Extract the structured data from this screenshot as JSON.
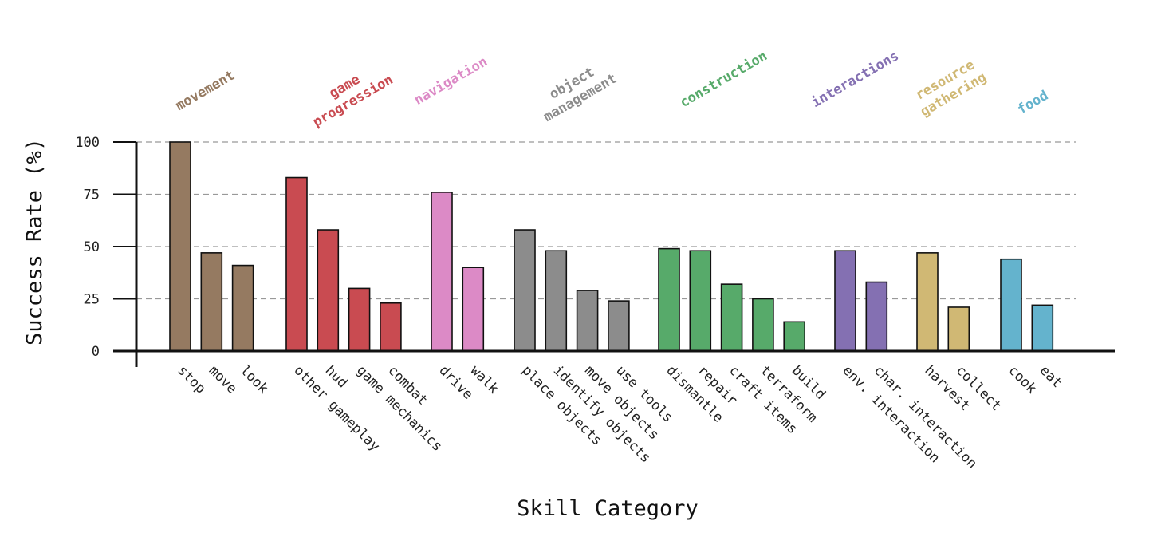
{
  "chart_data": {
    "type": "bar",
    "xlabel": "Skill Category",
    "ylabel": "Success Rate (%)",
    "ylim": [
      0,
      100
    ],
    "yticks": [
      0,
      25,
      50,
      75,
      100
    ],
    "grid": "horizontal dashed",
    "groups": [
      {
        "name": "movement",
        "color": "#957a61",
        "categories": [
          "stop",
          "move",
          "look"
        ],
        "values": [
          100,
          47,
          41
        ]
      },
      {
        "name": "game progression",
        "color": "#c94b51",
        "categories": [
          "other gameplay",
          "hud",
          "game mechanics",
          "combat"
        ],
        "values": [
          83,
          58,
          30,
          23
        ]
      },
      {
        "name": "navigation",
        "color": "#dc8ac6",
        "categories": [
          "drive",
          "walk"
        ],
        "values": [
          76,
          40
        ]
      },
      {
        "name": "object management",
        "color": "#8c8c8c",
        "categories": [
          "place objects",
          "identify objects",
          "move objects",
          "use tools"
        ],
        "values": [
          58,
          48,
          29,
          24
        ]
      },
      {
        "name": "construction",
        "color": "#57aa6a",
        "categories": [
          "dismantle",
          "repair",
          "craft items",
          "terraform",
          "build"
        ],
        "values": [
          49,
          48,
          32,
          25,
          14
        ]
      },
      {
        "name": "interactions",
        "color": "#8470b2",
        "categories": [
          "env. interaction",
          "char. interaction"
        ],
        "values": [
          48,
          33
        ]
      },
      {
        "name": "resource gathering",
        "color": "#d0b874",
        "categories": [
          "harvest",
          "collect"
        ],
        "values": [
          47,
          21
        ]
      },
      {
        "name": "food",
        "color": "#64b3cd",
        "categories": [
          "cook",
          "eat"
        ],
        "values": [
          44,
          22
        ]
      }
    ]
  }
}
